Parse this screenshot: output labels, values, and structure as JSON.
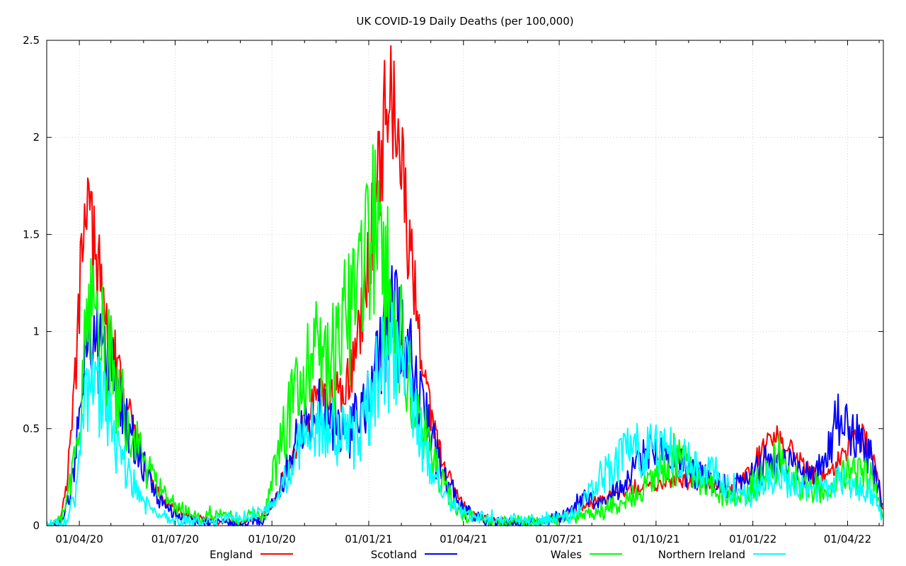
{
  "chart_data": {
    "type": "line",
    "title": "UK COVID-19 Daily Deaths (per 100,000)",
    "xlabel": "",
    "ylabel": "",
    "xlim": [
      "2020-03-01",
      "2022-05-05"
    ],
    "ylim": [
      0,
      2.5
    ],
    "yticks": [
      0,
      0.5,
      1,
      1.5,
      2,
      2.5
    ],
    "ytick_labels": [
      "0",
      "0.5",
      "1",
      "1.5",
      "2",
      "2.5"
    ],
    "xticks": [
      "2020-04-01",
      "2020-07-01",
      "2020-10-01",
      "2021-01-01",
      "2021-04-01",
      "2021-07-01",
      "2021-10-01",
      "2022-01-01",
      "2022-04-01"
    ],
    "xtick_labels": [
      "01/04/20",
      "01/07/20",
      "01/10/20",
      "01/01/21",
      "01/04/21",
      "01/07/21",
      "01/10/21",
      "01/01/22",
      "01/04/22"
    ],
    "grid": true,
    "legend": "bottom",
    "series": [
      {
        "name": "England",
        "color": "#ff0000",
        "noise": 0.08,
        "points": [
          [
            "2020-03-01",
            0
          ],
          [
            "2020-03-12",
            0.02
          ],
          [
            "2020-03-20",
            0.2
          ],
          [
            "2020-03-28",
            0.75
          ],
          [
            "2020-04-01",
            1.15
          ],
          [
            "2020-04-04",
            1.5
          ],
          [
            "2020-04-08",
            1.8
          ],
          [
            "2020-04-10",
            1.6
          ],
          [
            "2020-04-15",
            1.42
          ],
          [
            "2020-04-22",
            1.2
          ],
          [
            "2020-05-01",
            0.95
          ],
          [
            "2020-05-15",
            0.62
          ],
          [
            "2020-06-01",
            0.32
          ],
          [
            "2020-06-15",
            0.16
          ],
          [
            "2020-07-01",
            0.08
          ],
          [
            "2020-07-20",
            0.04
          ],
          [
            "2020-08-10",
            0.02
          ],
          [
            "2020-09-01",
            0.02
          ],
          [
            "2020-09-20",
            0.04
          ],
          [
            "2020-10-01",
            0.1
          ],
          [
            "2020-10-15",
            0.28
          ],
          [
            "2020-11-01",
            0.52
          ],
          [
            "2020-11-15",
            0.7
          ],
          [
            "2020-12-01",
            0.66
          ],
          [
            "2020-12-15",
            0.78
          ],
          [
            "2020-12-25",
            1.05
          ],
          [
            "2021-01-01",
            1.35
          ],
          [
            "2021-01-08",
            1.75
          ],
          [
            "2021-01-15",
            2.05
          ],
          [
            "2021-01-20",
            2.3
          ],
          [
            "2021-01-25",
            2.1
          ],
          [
            "2021-02-01",
            1.85
          ],
          [
            "2021-02-08",
            1.45
          ],
          [
            "2021-02-15",
            1.15
          ],
          [
            "2021-02-22",
            0.82
          ],
          [
            "2021-03-01",
            0.55
          ],
          [
            "2021-03-15",
            0.28
          ],
          [
            "2021-04-01",
            0.1
          ],
          [
            "2021-04-20",
            0.04
          ],
          [
            "2021-05-15",
            0.02
          ],
          [
            "2021-06-15",
            0.02
          ],
          [
            "2021-07-01",
            0.04
          ],
          [
            "2021-07-20",
            0.09
          ],
          [
            "2021-08-10",
            0.14
          ],
          [
            "2021-09-01",
            0.18
          ],
          [
            "2021-09-20",
            0.2
          ],
          [
            "2021-10-15",
            0.22
          ],
          [
            "2021-11-01",
            0.24
          ],
          [
            "2021-11-20",
            0.22
          ],
          [
            "2021-12-10",
            0.18
          ],
          [
            "2022-01-01",
            0.3
          ],
          [
            "2022-01-15",
            0.45
          ],
          [
            "2022-01-25",
            0.46
          ],
          [
            "2022-02-10",
            0.36
          ],
          [
            "2022-03-01",
            0.25
          ],
          [
            "2022-03-20",
            0.3
          ],
          [
            "2022-04-05",
            0.42
          ],
          [
            "2022-04-15",
            0.46
          ],
          [
            "2022-04-25",
            0.35
          ],
          [
            "2022-05-01",
            0.2
          ],
          [
            "2022-05-04",
            0.08
          ]
        ]
      },
      {
        "name": "Scotland",
        "color": "#0000ff",
        "noise": 0.14,
        "points": [
          [
            "2020-03-01",
            0
          ],
          [
            "2020-03-15",
            0.02
          ],
          [
            "2020-03-25",
            0.2
          ],
          [
            "2020-04-01",
            0.55
          ],
          [
            "2020-04-08",
            0.95
          ],
          [
            "2020-04-15",
            0.9
          ],
          [
            "2020-04-25",
            0.85
          ],
          [
            "2020-05-05",
            0.72
          ],
          [
            "2020-05-15",
            0.55
          ],
          [
            "2020-06-01",
            0.3
          ],
          [
            "2020-06-15",
            0.14
          ],
          [
            "2020-07-01",
            0.06
          ],
          [
            "2020-07-20",
            0.02
          ],
          [
            "2020-09-01",
            0.01
          ],
          [
            "2020-09-25",
            0.03
          ],
          [
            "2020-10-10",
            0.2
          ],
          [
            "2020-10-25",
            0.45
          ],
          [
            "2020-11-10",
            0.62
          ],
          [
            "2020-11-25",
            0.58
          ],
          [
            "2020-12-10",
            0.5
          ],
          [
            "2020-12-25",
            0.55
          ],
          [
            "2021-01-05",
            0.72
          ],
          [
            "2021-01-15",
            0.95
          ],
          [
            "2021-01-25",
            1.1
          ],
          [
            "2021-02-05",
            0.95
          ],
          [
            "2021-02-15",
            0.72
          ],
          [
            "2021-03-01",
            0.45
          ],
          [
            "2021-03-15",
            0.22
          ],
          [
            "2021-04-01",
            0.08
          ],
          [
            "2021-04-20",
            0.03
          ],
          [
            "2021-05-20",
            0.01
          ],
          [
            "2021-06-20",
            0.02
          ],
          [
            "2021-07-05",
            0.06
          ],
          [
            "2021-07-25",
            0.14
          ],
          [
            "2021-08-15",
            0.14
          ],
          [
            "2021-09-05",
            0.22
          ],
          [
            "2021-09-20",
            0.38
          ],
          [
            "2021-10-05",
            0.36
          ],
          [
            "2021-10-25",
            0.32
          ],
          [
            "2021-11-15",
            0.26
          ],
          [
            "2021-12-10",
            0.18
          ],
          [
            "2022-01-01",
            0.24
          ],
          [
            "2022-01-15",
            0.36
          ],
          [
            "2022-02-01",
            0.32
          ],
          [
            "2022-02-20",
            0.26
          ],
          [
            "2022-03-10",
            0.3
          ],
          [
            "2022-03-22",
            0.55
          ],
          [
            "2022-04-05",
            0.5
          ],
          [
            "2022-04-15",
            0.42
          ],
          [
            "2022-04-25",
            0.3
          ],
          [
            "2022-05-04",
            0.15
          ]
        ]
      },
      {
        "name": "Wales",
        "color": "#00ff00",
        "noise": 0.16,
        "points": [
          [
            "2020-03-01",
            0
          ],
          [
            "2020-03-15",
            0.03
          ],
          [
            "2020-03-25",
            0.25
          ],
          [
            "2020-04-01",
            0.6
          ],
          [
            "2020-04-08",
            1.1
          ],
          [
            "2020-04-15",
            1.05
          ],
          [
            "2020-04-25",
            0.88
          ],
          [
            "2020-05-05",
            0.75
          ],
          [
            "2020-05-15",
            0.55
          ],
          [
            "2020-06-01",
            0.32
          ],
          [
            "2020-06-15",
            0.2
          ],
          [
            "2020-07-01",
            0.1
          ],
          [
            "2020-07-20",
            0.05
          ],
          [
            "2020-08-10",
            0.06
          ],
          [
            "2020-09-01",
            0.03
          ],
          [
            "2020-09-25",
            0.08
          ],
          [
            "2020-10-10",
            0.45
          ],
          [
            "2020-10-25",
            0.75
          ],
          [
            "2020-11-10",
            0.85
          ],
          [
            "2020-11-25",
            0.8
          ],
          [
            "2020-12-10",
            1.05
          ],
          [
            "2020-12-20",
            1.25
          ],
          [
            "2020-12-30",
            1.3
          ],
          [
            "2021-01-10",
            1.55
          ],
          [
            "2021-01-20",
            1.2
          ],
          [
            "2021-02-01",
            0.95
          ],
          [
            "2021-02-15",
            0.6
          ],
          [
            "2021-03-01",
            0.38
          ],
          [
            "2021-03-15",
            0.18
          ],
          [
            "2021-04-01",
            0.05
          ],
          [
            "2021-05-01",
            0.02
          ],
          [
            "2021-06-15",
            0.02
          ],
          [
            "2021-07-10",
            0.04
          ],
          [
            "2021-08-01",
            0.06
          ],
          [
            "2021-08-20",
            0.1
          ],
          [
            "2021-09-10",
            0.16
          ],
          [
            "2021-10-01",
            0.26
          ],
          [
            "2021-10-20",
            0.35
          ],
          [
            "2021-11-10",
            0.28
          ],
          [
            "2021-12-01",
            0.18
          ],
          [
            "2021-12-20",
            0.15
          ],
          [
            "2022-01-10",
            0.24
          ],
          [
            "2022-01-25",
            0.34
          ],
          [
            "2022-02-15",
            0.22
          ],
          [
            "2022-03-10",
            0.18
          ],
          [
            "2022-03-25",
            0.25
          ],
          [
            "2022-04-10",
            0.28
          ],
          [
            "2022-04-25",
            0.22
          ],
          [
            "2022-05-04",
            0.05
          ]
        ]
      },
      {
        "name": "Northern Ireland",
        "color": "#00ffff",
        "noise": 0.16,
        "points": [
          [
            "2020-03-01",
            0
          ],
          [
            "2020-03-20",
            0.02
          ],
          [
            "2020-03-30",
            0.2
          ],
          [
            "2020-04-05",
            0.55
          ],
          [
            "2020-04-12",
            0.75
          ],
          [
            "2020-04-20",
            0.7
          ],
          [
            "2020-05-01",
            0.5
          ],
          [
            "2020-05-15",
            0.28
          ],
          [
            "2020-06-01",
            0.12
          ],
          [
            "2020-06-15",
            0.06
          ],
          [
            "2020-07-01",
            0.02
          ],
          [
            "2020-08-01",
            0.02
          ],
          [
            "2020-09-01",
            0.04
          ],
          [
            "2020-09-20",
            0.06
          ],
          [
            "2020-10-05",
            0.12
          ],
          [
            "2020-10-20",
            0.3
          ],
          [
            "2020-11-05",
            0.5
          ],
          [
            "2020-11-20",
            0.52
          ],
          [
            "2020-12-05",
            0.45
          ],
          [
            "2020-12-20",
            0.48
          ],
          [
            "2021-01-01",
            0.6
          ],
          [
            "2021-01-15",
            0.85
          ],
          [
            "2021-01-25",
            0.92
          ],
          [
            "2021-02-05",
            0.75
          ],
          [
            "2021-02-15",
            0.55
          ],
          [
            "2021-03-01",
            0.3
          ],
          [
            "2021-03-15",
            0.14
          ],
          [
            "2021-04-01",
            0.06
          ],
          [
            "2021-04-20",
            0.05
          ],
          [
            "2021-05-15",
            0.03
          ],
          [
            "2021-06-15",
            0.03
          ],
          [
            "2021-07-15",
            0.06
          ],
          [
            "2021-08-05",
            0.2
          ],
          [
            "2021-08-25",
            0.35
          ],
          [
            "2021-09-10",
            0.42
          ],
          [
            "2021-10-01",
            0.38
          ],
          [
            "2021-10-25",
            0.36
          ],
          [
            "2021-11-15",
            0.32
          ],
          [
            "2021-12-05",
            0.22
          ],
          [
            "2021-12-25",
            0.15
          ],
          [
            "2022-01-10",
            0.22
          ],
          [
            "2022-01-25",
            0.24
          ],
          [
            "2022-02-15",
            0.2
          ],
          [
            "2022-03-10",
            0.18
          ],
          [
            "2022-03-25",
            0.24
          ],
          [
            "2022-04-10",
            0.22
          ],
          [
            "2022-04-25",
            0.15
          ],
          [
            "2022-05-04",
            0.05
          ]
        ]
      }
    ]
  }
}
